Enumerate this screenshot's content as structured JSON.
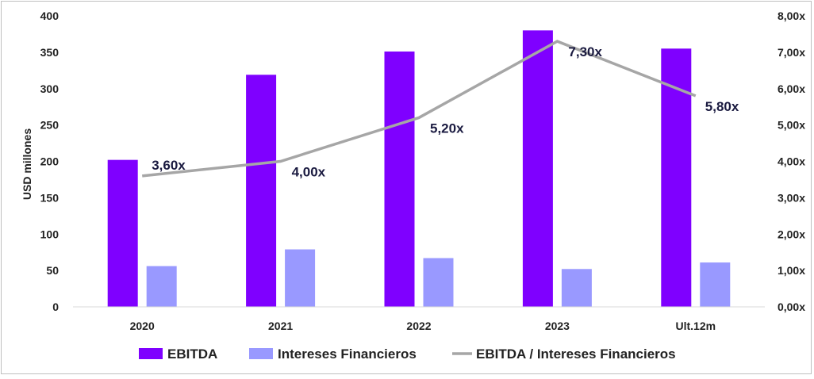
{
  "chart_data": {
    "type": "bar",
    "categories": [
      "2020",
      "2021",
      "2022",
      "2023",
      "Ult.12m"
    ],
    "series": [
      {
        "name": "EBITDA",
        "type": "bar",
        "axis": "left",
        "color": "#7f00ff",
        "values": [
          202,
          319,
          351,
          380,
          355
        ]
      },
      {
        "name": "Intereses Financieros",
        "type": "bar",
        "axis": "left",
        "color": "#9999ff",
        "values": [
          56,
          79,
          67,
          52,
          61
        ]
      },
      {
        "name": "EBITDA / Intereses Financieros",
        "type": "line",
        "axis": "right",
        "color": "#a6a6a6",
        "values": [
          3.6,
          4.0,
          5.2,
          7.3,
          5.8
        ]
      }
    ],
    "data_labels": [
      "3,60x",
      "4,00x",
      "5,20x",
      "7,30x",
      "5,80x"
    ],
    "ylabel": "USD millones",
    "ylim": [
      0,
      400
    ],
    "yticks": [
      "0",
      "50",
      "100",
      "150",
      "200",
      "250",
      "300",
      "350",
      "400"
    ],
    "y2lim": [
      0,
      8
    ],
    "y2ticks": [
      "0,00x",
      "1,00x",
      "2,00x",
      "3,00x",
      "4,00x",
      "5,00x",
      "6,00x",
      "7,00x",
      "8,00x"
    ],
    "grid": false,
    "legend_position": "bottom"
  }
}
